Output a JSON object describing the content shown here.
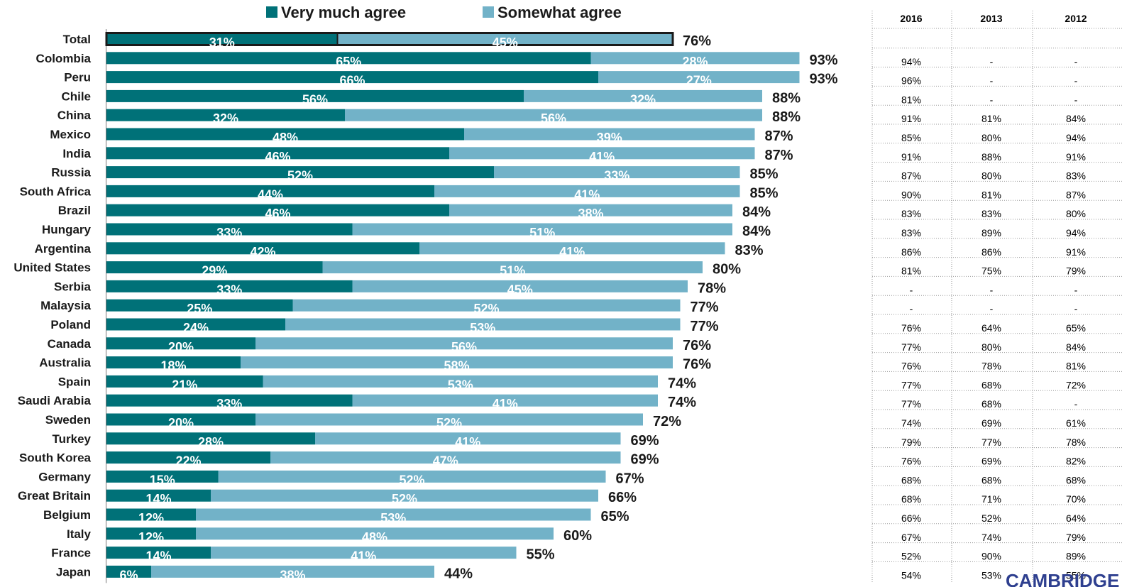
{
  "colors": {
    "very_much": "#007178",
    "somewhat": "#72b2c8",
    "text": "#1a1a1a"
  },
  "watermark_text": "CAMBRIDGE",
  "chart_data": {
    "type": "bar",
    "orientation": "horizontal",
    "stacked": true,
    "categories": [
      "Total",
      "Colombia",
      "Peru",
      "Chile",
      "China",
      "Mexico",
      "India",
      "Russia",
      "South Africa",
      "Brazil",
      "Hungary",
      "Argentina",
      "United States",
      "Serbia",
      "Malaysia",
      "Poland",
      "Canada",
      "Australia",
      "Spain",
      "Saudi Arabia",
      "Sweden",
      "Turkey",
      "South Korea",
      "Germany",
      "Great Britain",
      "Belgium",
      "Italy",
      "France",
      "Japan"
    ],
    "series": [
      {
        "name": "Very much agree",
        "values": [
          31,
          65,
          66,
          56,
          32,
          48,
          46,
          52,
          44,
          46,
          33,
          42,
          29,
          33,
          25,
          24,
          20,
          18,
          21,
          33,
          20,
          28,
          22,
          15,
          14,
          12,
          12,
          14,
          6
        ]
      },
      {
        "name": "Somewhat agree",
        "values": [
          45,
          28,
          27,
          32,
          56,
          39,
          41,
          33,
          41,
          38,
          51,
          41,
          51,
          45,
          52,
          53,
          56,
          58,
          53,
          41,
          52,
          41,
          47,
          52,
          52,
          53,
          48,
          41,
          38
        ]
      }
    ],
    "totals": [
      "76%",
      "93%",
      "93%",
      "88%",
      "88%",
      "87%",
      "87%",
      "85%",
      "85%",
      "84%",
      "84%",
      "83%",
      "80%",
      "78%",
      "77%",
      "77%",
      "76%",
      "76%",
      "74%",
      "74%",
      "72%",
      "69%",
      "69%",
      "67%",
      "66%",
      "65%",
      "60%",
      "55%",
      "44%"
    ],
    "xlim": [
      0,
      100
    ],
    "legend": {
      "position": "top",
      "items": [
        "Very much agree",
        "Somewhat agree"
      ]
    },
    "grid": false,
    "table": {
      "headers": [
        "2016",
        "2013",
        "2012"
      ],
      "rows": [
        [
          "",
          "",
          ""
        ],
        [
          "94%",
          "-",
          "-"
        ],
        [
          "96%",
          "-",
          "-"
        ],
        [
          "81%",
          "-",
          "-"
        ],
        [
          "91%",
          "81%",
          "84%"
        ],
        [
          "85%",
          "80%",
          "94%"
        ],
        [
          "91%",
          "88%",
          "91%"
        ],
        [
          "87%",
          "80%",
          "83%"
        ],
        [
          "90%",
          "81%",
          "87%"
        ],
        [
          "83%",
          "83%",
          "80%"
        ],
        [
          "83%",
          "89%",
          "94%"
        ],
        [
          "86%",
          "86%",
          "91%"
        ],
        [
          "81%",
          "75%",
          "79%"
        ],
        [
          "-",
          "-",
          "-"
        ],
        [
          "-",
          "-",
          "-"
        ],
        [
          "76%",
          "64%",
          "65%"
        ],
        [
          "77%",
          "80%",
          "84%"
        ],
        [
          "76%",
          "78%",
          "81%"
        ],
        [
          "77%",
          "68%",
          "72%"
        ],
        [
          "77%",
          "68%",
          "-"
        ],
        [
          "74%",
          "69%",
          "61%"
        ],
        [
          "79%",
          "77%",
          "78%"
        ],
        [
          "76%",
          "69%",
          "82%"
        ],
        [
          "68%",
          "68%",
          "68%"
        ],
        [
          "68%",
          "71%",
          "70%"
        ],
        [
          "66%",
          "52%",
          "64%"
        ],
        [
          "67%",
          "74%",
          "79%"
        ],
        [
          "52%",
          "90%",
          "89%"
        ],
        [
          "54%",
          "53%",
          "55%"
        ]
      ]
    }
  }
}
